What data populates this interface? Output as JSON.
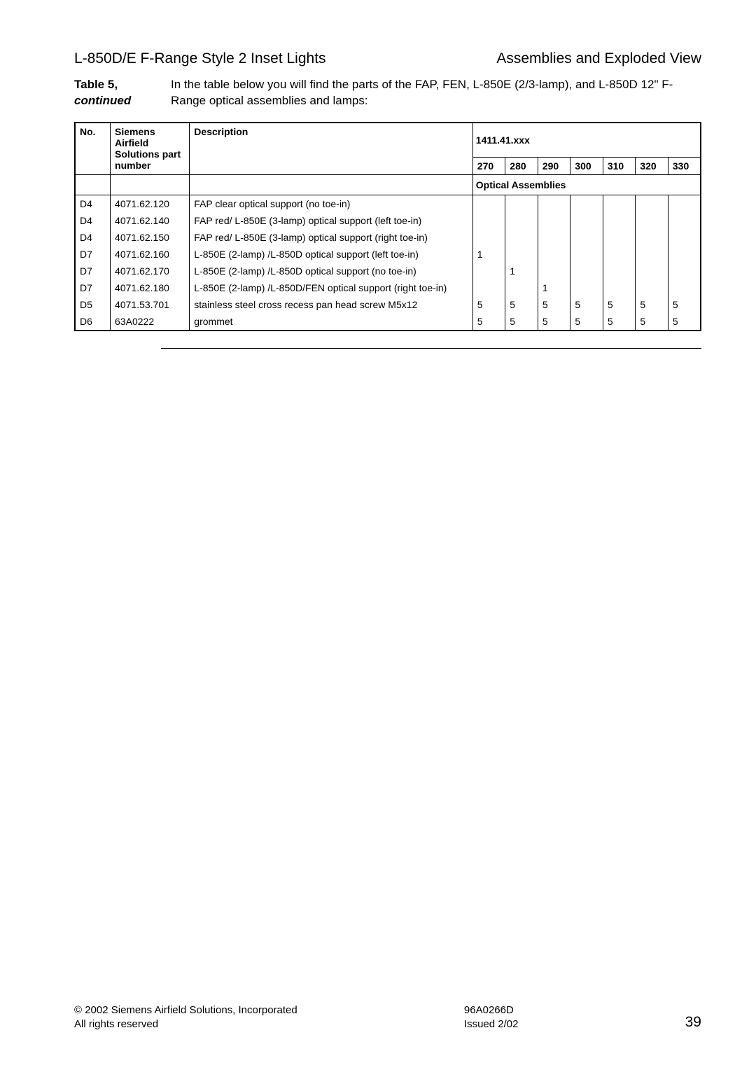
{
  "header": {
    "left": "L-850D/E F-Range Style 2 Inset Lights",
    "right": "Assemblies and Exploded View"
  },
  "tableRef": {
    "label": "Table 5,",
    "cont": "continued",
    "intro": "In the table below you will find the parts of the FAP, FEN, L-850E (2/3-lamp), and L-850D 12\" F-Range optical assemblies and lamps:"
  },
  "columns": {
    "no": "No.",
    "pn": "Siemens Airfield Solutions part number",
    "desc": "Description",
    "series": "1411.41.xxx",
    "heads": [
      "270",
      "280",
      "290",
      "300",
      "310",
      "320",
      "330"
    ],
    "section": "Optical Assemblies"
  },
  "rows": [
    {
      "no": "D4",
      "pn": "4071.62.120",
      "desc": "FAP clear optical support (no toe-in)",
      "q": [
        "",
        "",
        "",
        "",
        "",
        "",
        ""
      ]
    },
    {
      "no": "D4",
      "pn": "4071.62.140",
      "desc": "FAP red/ L-850E (3-lamp)  optical support (left toe-in)",
      "q": [
        "",
        "",
        "",
        "",
        "",
        "",
        ""
      ]
    },
    {
      "no": "D4",
      "pn": "4071.62.150",
      "desc": "FAP red/ L-850E (3-lamp)  optical support (right toe-in)",
      "q": [
        "",
        "",
        "",
        "",
        "",
        "",
        ""
      ]
    },
    {
      "no": "D7",
      "pn": "4071.62.160",
      "desc": "L-850E (2-lamp) /L-850D optical support (left toe-in)",
      "q": [
        "1",
        "",
        "",
        "",
        "",
        "",
        ""
      ]
    },
    {
      "no": "D7",
      "pn": "4071.62.170",
      "desc": "L-850E (2-lamp) /L-850D optical support (no toe-in)",
      "q": [
        "",
        "1",
        "",
        "",
        "",
        "",
        ""
      ]
    },
    {
      "no": "D7",
      "pn": "4071.62.180",
      "desc": "L-850E (2-lamp) /L-850D/FEN optical support (right toe-in)",
      "q": [
        "",
        "",
        "1",
        "",
        "",
        "",
        ""
      ]
    },
    {
      "no": "D5",
      "pn": "4071.53.701",
      "desc": "stainless steel cross recess pan head screw M5x12",
      "q": [
        "5",
        "5",
        "5",
        "5",
        "5",
        "5",
        "5"
      ]
    },
    {
      "no": "D6",
      "pn": "63A0222",
      "desc": "grommet",
      "q": [
        "5",
        "5",
        "5",
        "5",
        "5",
        "5",
        "5"
      ]
    }
  ],
  "footer": {
    "copyright": "© 2002 Siemens Airfield Solutions, Incorporated",
    "rights": "All rights reserved",
    "doc": "96A0266D",
    "issued": "Issued 2/02",
    "page": "39"
  }
}
